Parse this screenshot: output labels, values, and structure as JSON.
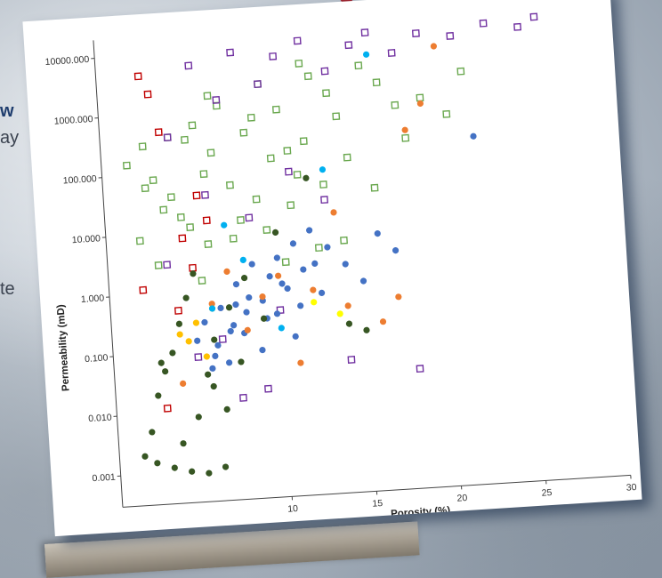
{
  "background": {
    "fragments": [
      {
        "text": "w",
        "bold": true
      },
      {
        "text": "ay",
        "bold": false
      },
      {
        "text": "te",
        "bold": false
      }
    ],
    "accent_color": "#a0242e"
  },
  "chart_data": {
    "type": "scatter",
    "title": "",
    "xlabel": "Porosity (%)",
    "ylabel": "Permeability (mD)",
    "x_scale": "linear",
    "y_scale": "log",
    "xlim": [
      0,
      30
    ],
    "ylim": [
      0.0003,
      20000
    ],
    "x_ticks": [
      {
        "value": 10,
        "label": "10"
      },
      {
        "value": 15,
        "label": "15"
      },
      {
        "value": 20,
        "label": "20"
      },
      {
        "value": 25,
        "label": "25"
      },
      {
        "value": 30,
        "label": "30"
      }
    ],
    "y_ticks": [
      {
        "value": 0.001,
        "label": "0.001"
      },
      {
        "value": 0.01,
        "label": "0.010"
      },
      {
        "value": 0.1,
        "label": "0.100"
      },
      {
        "value": 1,
        "label": "1.000"
      },
      {
        "value": 10,
        "label": "10.000"
      },
      {
        "value": 100,
        "label": "100.000"
      },
      {
        "value": 1000,
        "label": "1000.000"
      },
      {
        "value": 10000,
        "label": "10000.000"
      }
    ],
    "grid": false,
    "legend": "none",
    "series": [
      {
        "color": "#6aa84f",
        "marker": "open-square",
        "x_values": [
          1.5,
          2.5,
          3.0,
          4.0,
          5.5,
          6.5,
          7.0,
          8.5,
          9.5,
          10.5,
          11.0,
          12.5,
          13.5,
          14.0,
          15.5,
          16.5,
          17.5,
          19.0,
          20.5,
          21.5,
          3.5,
          5.0,
          6.0,
          7.5,
          9.0,
          10.0,
          11.5,
          12.0,
          13.0,
          14.5,
          16.0,
          18.0,
          2.0,
          4.5,
          6.0,
          8.0,
          9.5,
          11.0,
          12.5,
          3.0,
          5.5,
          7.5,
          10.5,
          14.0,
          4.0,
          6.5,
          9.0,
          12.0,
          2.5,
          5.0
        ],
        "y_values": [
          150,
          300,
          80,
          40,
          600,
          200,
          1200,
          400,
          2500,
          900,
          180,
          3000,
          1500,
          600,
          4000,
          2000,
          800,
          1000,
          500,
          2500,
          25,
          12,
          90,
          55,
          30,
          140,
          70,
          250,
          45,
          120,
          35,
          220,
          8,
          18,
          6,
          14,
          9,
          22,
          4,
          3,
          1.5,
          7,
          2.5,
          5,
          400,
          1800,
          700,
          5000,
          60,
          350
        ]
      },
      {
        "color": "#7030a0",
        "marker": "open-square",
        "x_values": [
          4.0,
          5.5,
          7.0,
          8.0,
          9.5,
          10.5,
          12.0,
          13.5,
          15.0,
          16.0,
          17.5,
          19.0,
          21.0,
          23.0,
          25.0,
          26.0,
          6.0,
          8.5,
          11.0,
          13.0,
          5.0,
          7.5,
          10.0,
          3.5,
          6.5,
          9.0,
          14.0,
          18.0
        ],
        "y_values": [
          400,
          6000,
          1500,
          9000,
          2500,
          7000,
          12000,
          3500,
          9000,
          14000,
          6000,
          12000,
          10000,
          15000,
          12000,
          17000,
          40,
          15,
          80,
          25,
          0.08,
          0.015,
          0.4,
          3,
          0.15,
          0.02,
          0.05,
          0.03
        ]
      },
      {
        "color": "#c00000",
        "marker": "open-square",
        "x_values": [
          2.5,
          3.0,
          3.5,
          4.5,
          5.0,
          2.0,
          4.0,
          6.0,
          3.0,
          5.5
        ],
        "y_values": [
          4500,
          2200,
          500,
          8,
          2.5,
          1.2,
          0.5,
          15,
          0.012,
          40
        ]
      },
      {
        "color": "#4472c4",
        "marker": "filled-circle",
        "x_values": [
          5.0,
          5.5,
          6.0,
          6.5,
          7.0,
          7.5,
          8.0,
          8.5,
          9.0,
          9.5,
          10.0,
          10.5,
          11.0,
          11.5,
          12.0,
          12.5,
          13.0,
          14.0,
          15.0,
          16.0,
          17.0,
          22.0,
          6.2,
          7.2,
          8.2,
          9.2,
          10.2,
          11.2,
          12.2,
          6.8,
          7.8,
          8.8,
          9.8,
          10.8,
          5.8,
          7.4
        ],
        "y_values": [
          0.15,
          0.3,
          0.08,
          0.5,
          0.2,
          1.2,
          0.4,
          2.5,
          0.6,
          1.5,
          3.0,
          0.9,
          5.0,
          1.8,
          8.0,
          0.7,
          4.0,
          2.0,
          1.0,
          6.0,
          3.0,
          200,
          0.12,
          0.25,
          0.7,
          0.3,
          1.1,
          0.45,
          2.2,
          0.06,
          0.18,
          0.09,
          0.35,
          0.14,
          0.05,
          0.55
        ]
      },
      {
        "color": "#ed7d31",
        "marker": "filled-circle",
        "x_values": [
          4.0,
          6.0,
          8.0,
          10.0,
          12.0,
          13.5,
          14.0,
          16.0,
          17.0,
          18.0,
          19.0,
          20.0,
          11.0,
          9.0,
          7.0
        ],
        "y_values": [
          0.03,
          0.6,
          0.2,
          1.5,
          0.8,
          15,
          0.4,
          0.2,
          0.5,
          300,
          800,
          7000,
          0.05,
          0.7,
          2.0
        ]
      },
      {
        "color": "#375623",
        "marker": "filled-circle",
        "x_values": [
          1.5,
          2.0,
          2.5,
          3.0,
          3.5,
          4.0,
          4.5,
          5.0,
          5.5,
          6.0,
          6.5,
          7.0,
          7.5,
          8.0,
          9.0,
          10.0,
          12.0,
          14.0,
          15.0,
          2.2,
          3.2,
          4.2,
          5.2,
          6.2,
          3.8,
          4.8,
          5.8,
          2.8
        ],
        "y_values": [
          0.002,
          0.005,
          0.02,
          0.05,
          0.1,
          0.3,
          0.8,
          2.0,
          0.04,
          0.15,
          0.01,
          0.5,
          0.06,
          1.5,
          0.3,
          8.0,
          60,
          0.2,
          0.15,
          0.0015,
          0.0012,
          0.001,
          0.0009,
          0.0011,
          0.003,
          0.008,
          0.025,
          0.07
        ]
      },
      {
        "color": "#ffc000",
        "marker": "filled-circle",
        "x_values": [
          4.5,
          5.0,
          5.5,
          6.0,
          4.0
        ],
        "y_values": [
          0.15,
          0.3,
          0.08,
          0.5,
          0.2
        ]
      },
      {
        "color": "#00b0f0",
        "marker": "filled-circle",
        "x_values": [
          6.0,
          8.0,
          10.0,
          13.0,
          16.0,
          7.0
        ],
        "y_values": [
          0.5,
          3.0,
          0.2,
          80,
          6000,
          12
        ]
      },
      {
        "color": "#ffff00",
        "marker": "filled-circle",
        "x_values": [
          12.0,
          13.5
        ],
        "y_values": [
          0.5,
          0.3
        ]
      }
    ]
  }
}
